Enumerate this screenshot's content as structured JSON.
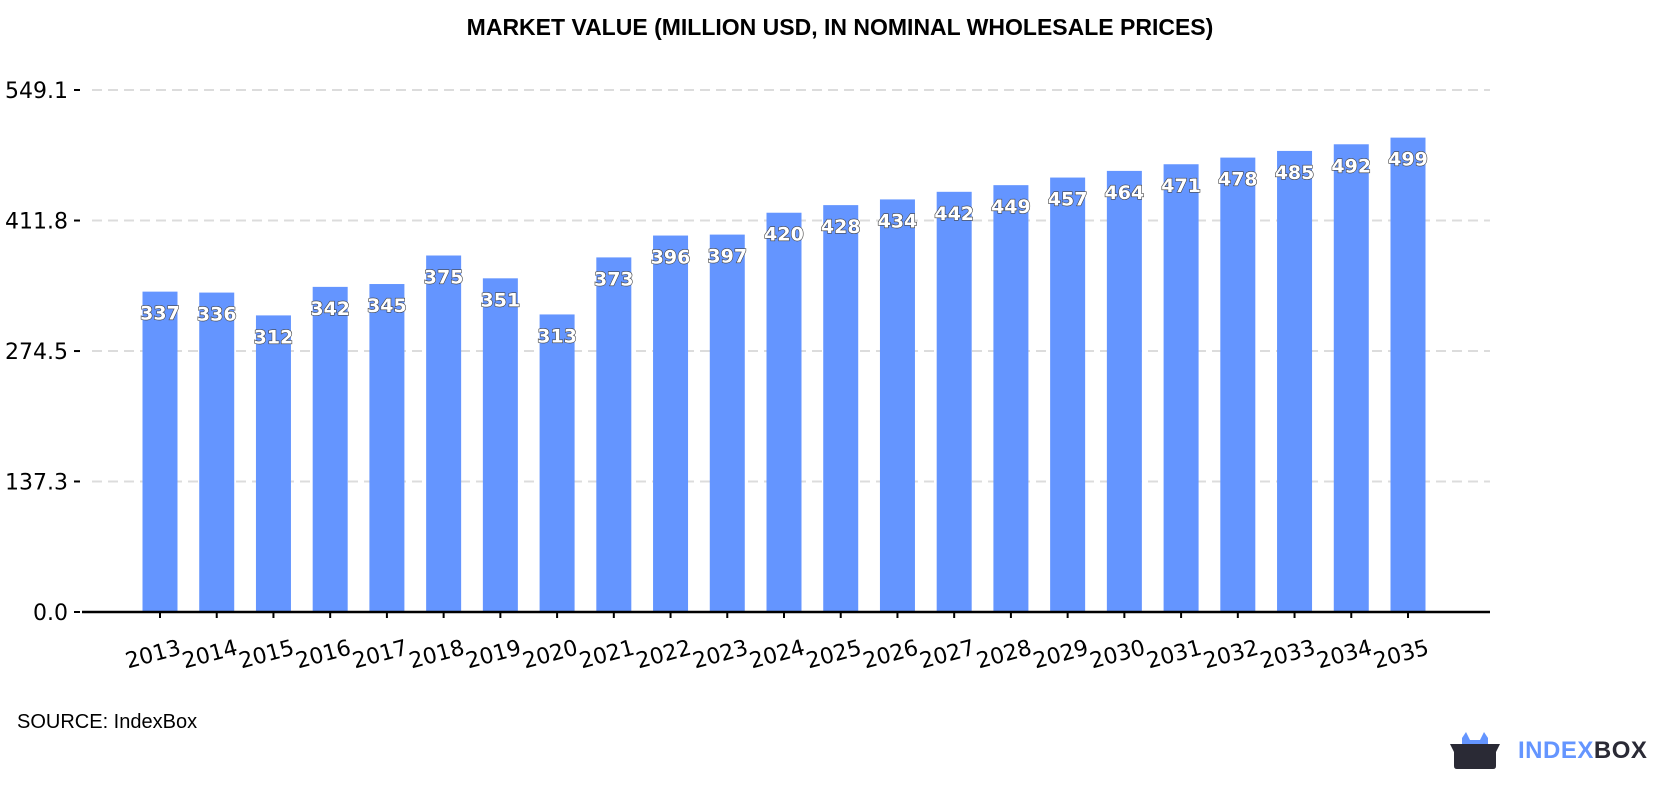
{
  "chart_data": {
    "type": "bar",
    "title": "MARKET VALUE (MILLION USD, IN NOMINAL WHOLESALE PRICES)",
    "xlabel": "",
    "ylabel": "",
    "categories": [
      "2013",
      "2014",
      "2015",
      "2016",
      "2017",
      "2018",
      "2019",
      "2020",
      "2021",
      "2022",
      "2023",
      "2024",
      "2025",
      "2026",
      "2027",
      "2028",
      "2029",
      "2030",
      "2031",
      "2032",
      "2033",
      "2034",
      "2035"
    ],
    "values": [
      337,
      336,
      312,
      342,
      345,
      375,
      351,
      313,
      373,
      396,
      397,
      420,
      428,
      434,
      442,
      449,
      457,
      464,
      471,
      478,
      485,
      492,
      499
    ],
    "yticks": [
      "0.0",
      "137.3",
      "274.5",
      "411.8",
      "549.1"
    ],
    "ylim": [
      0,
      549.1
    ],
    "grid": true,
    "bar_color": "#6495ff"
  },
  "footer": {
    "source": "SOURCE: IndexBox",
    "logo_part1": "INDEX",
    "logo_part2": "BOX"
  }
}
